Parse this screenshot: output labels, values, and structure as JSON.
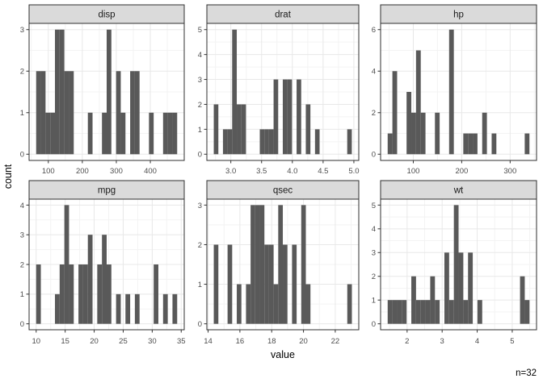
{
  "axis_titles": {
    "x": "value",
    "y": "count"
  },
  "caption": "n=32",
  "style": {
    "background": "#ffffff",
    "bar_fill": "#595959",
    "strip_fill": "#DADADA",
    "strip_text_color": "#1a1a1a",
    "panel_fill": "#ffffff",
    "panel_border": "#2f2f2f",
    "grid_major": "#E8E8E8",
    "grid_minor": "#F3F3F3",
    "tick_color": "#333333",
    "tick_text_color": "#4D4D4D",
    "title_text_color": "#000000"
  },
  "chart_data": {
    "type": "histogram",
    "facet_by": "variable",
    "n": 32,
    "xlabel": "value",
    "ylabel": "count",
    "caption": "n=32",
    "legend": "none",
    "grid": "on",
    "facets": [
      {
        "label": "disp",
        "bin_start": 64.188,
        "bin_width": 13.8241,
        "counts": [
          2,
          2,
          1,
          1,
          3,
          3,
          2,
          2,
          0,
          0,
          0,
          1,
          0,
          0,
          1,
          3,
          0,
          2,
          1,
          0,
          2,
          2,
          0,
          0,
          1,
          0,
          0,
          1,
          1,
          1
        ],
        "x_domain": [
          43.45,
          499.67
        ],
        "y_domain": [
          -0.15,
          3.15
        ],
        "x_ticks": [
          100,
          200,
          300,
          400
        ],
        "x_tick_labels": [
          "100",
          "200",
          "300",
          "400"
        ],
        "y_ticks": [
          0,
          1,
          2,
          3
        ],
        "y_tick_labels": [
          "0",
          "1",
          "2",
          "3"
        ]
      },
      {
        "label": "drat",
        "bin_start": 2.7226,
        "bin_width": 0.0748,
        "counts": [
          2,
          0,
          1,
          1,
          5,
          2,
          2,
          0,
          0,
          0,
          1,
          1,
          1,
          3,
          0,
          3,
          3,
          0,
          3,
          0,
          2,
          0,
          1,
          0,
          0,
          0,
          0,
          0,
          0,
          1
        ],
        "x_domain": [
          2.6104,
          5.0796
        ],
        "y_domain": [
          -0.25,
          5.25
        ],
        "x_ticks": [
          3.0,
          3.5,
          4.0,
          4.5,
          5.0
        ],
        "x_tick_labels": [
          "3.0",
          "3.5",
          "4.0",
          "4.5",
          "5.0"
        ],
        "y_ticks": [
          0,
          1,
          2,
          3,
          4,
          5
        ],
        "y_tick_labels": [
          "0",
          "1",
          "2",
          "3",
          "4",
          "5"
        ]
      },
      {
        "label": "hp",
        "bin_start": 47.1207,
        "bin_width": 9.7586,
        "counts": [
          1,
          4,
          0,
          0,
          3,
          2,
          5,
          2,
          0,
          0,
          2,
          0,
          0,
          6,
          0,
          0,
          1,
          1,
          1,
          0,
          2,
          0,
          1,
          0,
          0,
          0,
          0,
          0,
          0,
          1
        ],
        "x_domain": [
          32.48,
          354.52
        ],
        "y_domain": [
          -0.3,
          6.3
        ],
        "x_ticks": [
          100,
          200,
          300
        ],
        "x_tick_labels": [
          "100",
          "200",
          "300"
        ],
        "y_ticks": [
          0,
          2,
          4,
          6
        ],
        "y_tick_labels": [
          "0",
          "2",
          "4",
          "6"
        ]
      },
      {
        "label": "mpg",
        "bin_start": 9.9948,
        "bin_width": 0.8103,
        "counts": [
          2,
          0,
          0,
          0,
          1,
          2,
          4,
          2,
          0,
          2,
          2,
          3,
          0,
          2,
          3,
          2,
          0,
          1,
          0,
          1,
          0,
          1,
          0,
          0,
          0,
          2,
          0,
          1,
          0,
          1
        ],
        "x_domain": [
          8.78,
          35.52
        ],
        "y_domain": [
          -0.2,
          4.2
        ],
        "x_ticks": [
          10,
          15,
          20,
          25,
          30,
          35
        ],
        "x_tick_labels": [
          "10",
          "15",
          "20",
          "25",
          "30",
          "35"
        ],
        "y_ticks": [
          0,
          1,
          2,
          3,
          4
        ],
        "y_tick_labels": [
          "0",
          "1",
          "2",
          "3",
          "4"
        ]
      },
      {
        "label": "qsec",
        "bin_start": 14.3552,
        "bin_width": 0.2897,
        "counts": [
          2,
          0,
          0,
          2,
          0,
          1,
          0,
          1,
          3,
          3,
          3,
          2,
          2,
          1,
          3,
          2,
          0,
          2,
          0,
          3,
          1,
          0,
          0,
          0,
          0,
          0,
          0,
          0,
          0,
          1
        ],
        "x_domain": [
          13.9207,
          23.4793
        ],
        "y_domain": [
          -0.15,
          3.15
        ],
        "x_ticks": [
          14,
          16,
          18,
          20,
          22
        ],
        "x_tick_labels": [
          "14",
          "16",
          "18",
          "20",
          "22"
        ],
        "y_ticks": [
          0,
          1,
          2,
          3
        ],
        "y_tick_labels": [
          "0",
          "1",
          "2",
          "3"
        ]
      },
      {
        "label": "wt",
        "bin_start": 1.4456,
        "bin_width": 0.1349,
        "counts": [
          1,
          1,
          1,
          1,
          0,
          2,
          1,
          1,
          1,
          2,
          1,
          0,
          3,
          1,
          5,
          3,
          1,
          3,
          0,
          1,
          0,
          0,
          0,
          0,
          0,
          0,
          0,
          0,
          2,
          1
        ],
        "x_domain": [
          1.2433,
          5.6936
        ],
        "y_domain": [
          -0.25,
          5.25
        ],
        "x_ticks": [
          2,
          3,
          4,
          5
        ],
        "x_tick_labels": [
          "2",
          "3",
          "4",
          "5"
        ],
        "y_ticks": [
          0,
          1,
          2,
          3,
          4,
          5
        ],
        "y_tick_labels": [
          "0",
          "1",
          "2",
          "3",
          "4",
          "5"
        ]
      }
    ]
  }
}
